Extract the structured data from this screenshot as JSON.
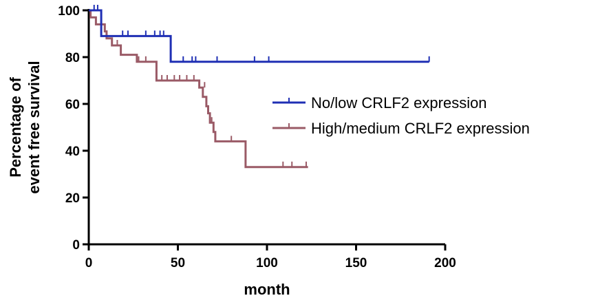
{
  "chart_data": {
    "type": "line",
    "subtype": "kaplan-meier step plot",
    "title": "",
    "xlabel": "month",
    "ylabel": [
      "Percentage of",
      "event free survival"
    ],
    "xlim": [
      0,
      200
    ],
    "ylim": [
      0,
      100
    ],
    "x_ticks": [
      0,
      50,
      100,
      150,
      200
    ],
    "y_ticks": [
      0,
      20,
      40,
      60,
      80,
      100
    ],
    "grid": false,
    "legend_position": "right",
    "series": [
      {
        "name": "No/low CRLF2 expression",
        "color": "#1f2fb4",
        "steps": [
          [
            0,
            100
          ],
          [
            7,
            100
          ],
          [
            7,
            89
          ],
          [
            46,
            89
          ],
          [
            46,
            78
          ],
          [
            191,
            78
          ]
        ],
        "censored": [
          [
            3,
            100
          ],
          [
            5,
            100
          ],
          [
            19,
            89
          ],
          [
            22,
            89
          ],
          [
            32,
            89
          ],
          [
            37,
            89
          ],
          [
            40,
            89
          ],
          [
            42,
            89
          ],
          [
            53,
            78
          ],
          [
            58,
            78
          ],
          [
            60,
            78
          ],
          [
            72,
            78
          ],
          [
            93,
            78
          ],
          [
            101,
            78
          ],
          [
            191,
            78
          ]
        ]
      },
      {
        "name": "High/medium CRLF2 expression",
        "color": "#9a5a66",
        "steps": [
          [
            0,
            100
          ],
          [
            1,
            100
          ],
          [
            1,
            97
          ],
          [
            4,
            97
          ],
          [
            4,
            94
          ],
          [
            9,
            94
          ],
          [
            9,
            91
          ],
          [
            10,
            91
          ],
          [
            10,
            88
          ],
          [
            13,
            88
          ],
          [
            13,
            85
          ],
          [
            18,
            85
          ],
          [
            18,
            81
          ],
          [
            27,
            81
          ],
          [
            27,
            78
          ],
          [
            38,
            78
          ],
          [
            38,
            70
          ],
          [
            62,
            70
          ],
          [
            62,
            67
          ],
          [
            64,
            67
          ],
          [
            64,
            63
          ],
          [
            66,
            63
          ],
          [
            66,
            59
          ],
          [
            67,
            59
          ],
          [
            67,
            56
          ],
          [
            68,
            56
          ],
          [
            68,
            52
          ],
          [
            70,
            52
          ],
          [
            70,
            48
          ],
          [
            71,
            48
          ],
          [
            71,
            44
          ],
          [
            88,
            44
          ],
          [
            88,
            33
          ],
          [
            123,
            33
          ]
        ],
        "censored": [
          [
            16,
            85
          ],
          [
            28,
            78
          ],
          [
            32,
            78
          ],
          [
            41,
            70
          ],
          [
            44,
            70
          ],
          [
            48,
            70
          ],
          [
            51,
            70
          ],
          [
            55,
            70
          ],
          [
            59,
            70
          ],
          [
            65,
            67
          ],
          [
            69,
            52
          ],
          [
            80,
            44
          ],
          [
            109,
            33
          ],
          [
            114,
            33
          ],
          [
            122,
            33
          ]
        ]
      }
    ]
  }
}
